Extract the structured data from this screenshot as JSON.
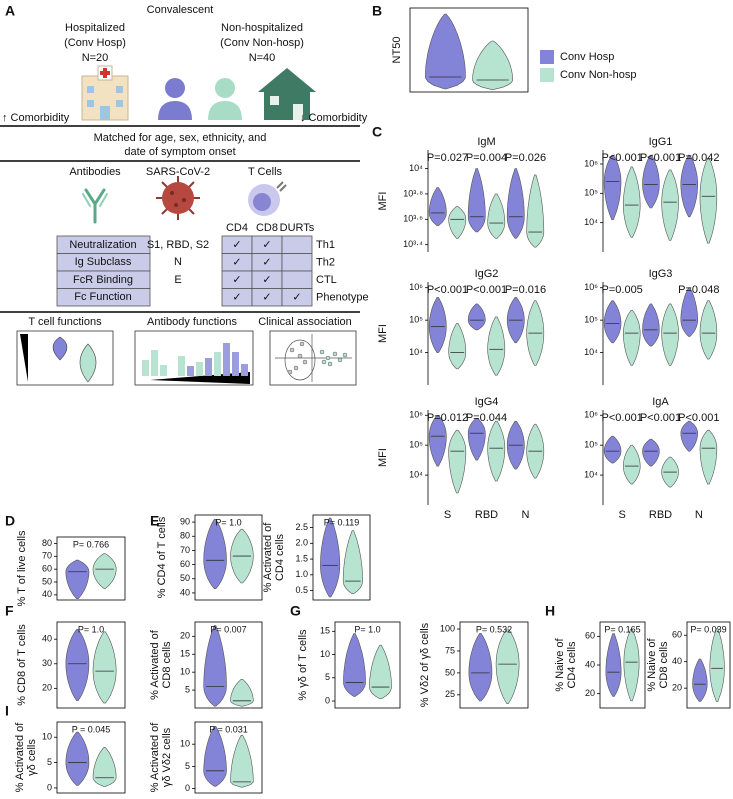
{
  "panel_a": {
    "letter": "A",
    "heading": "Convalescent",
    "groups": [
      {
        "lines": [
          "Hospitalized",
          "(Conv Hosp)",
          "N=20"
        ]
      },
      {
        "lines": [
          "Non-hospitalized",
          "(Conv Non-hosp)",
          "N=40"
        ]
      }
    ],
    "comorbidity": [
      "↑ Comorbidity",
      "↓ Comorbidity"
    ],
    "matched": [
      "Matched for age, sex, ethnicity, and",
      "date of symptom onset"
    ],
    "columns": [
      "Antibodies",
      "SARS-CoV-2",
      "T Cells"
    ],
    "assays": [
      [
        "Neutralization",
        "S1, RBD, S2"
      ],
      [
        "Ig Subclass",
        "N"
      ],
      [
        "FcR Binding",
        "E"
      ],
      [
        "Fc Function"
      ]
    ],
    "t_cells": {
      "headers": [
        "CD4",
        "CD8",
        "DURTs"
      ],
      "rows": [
        {
          "checks": [
            "✓",
            "✓",
            null
          ],
          "label": "Th1"
        },
        {
          "checks": [
            "✓",
            "✓",
            null
          ],
          "label": "Th2"
        },
        {
          "checks": [
            "✓",
            "✓",
            null
          ],
          "label": "CTL"
        },
        {
          "checks": [
            "✓",
            "✓",
            "✓"
          ],
          "label": "Phenotype"
        }
      ]
    },
    "functions": [
      "T cell functions",
      "Antibody functions",
      "Clinical association"
    ]
  },
  "legend": [
    {
      "name": "Conv Hosp",
      "color": "#8383d8"
    },
    {
      "name": "Conv Non-hosp",
      "color": "#b7e3d1"
    }
  ],
  "chart_data": [
    {
      "type": "violin",
      "panel": "B",
      "ylabel": [
        "NT50"
      ],
      "ylim": [
        0,
        2800
      ],
      "series": [
        {
          "color": "#8383d8",
          "min": [
            100
          ],
          "median": [
            500
          ],
          "max": [
            2600
          ]
        },
        {
          "color": "#b7e3d1",
          "min": [
            80
          ],
          "median": [
            400
          ],
          "max": [
            1700
          ]
        }
      ]
    },
    {
      "type": "violin",
      "panel": "C",
      "title": "IgM",
      "ylabel": [
        "MFI"
      ],
      "log": true,
      "ylim": [
        2200,
        14000
      ],
      "yticks": [
        {
          "value": 2511.886,
          "label": "10³·⁴"
        },
        {
          "value": 3981.072,
          "label": "10³·⁶"
        },
        {
          "value": 6309.573,
          "label": "10³·⁸"
        },
        {
          "value": 10000,
          "label": "10⁴"
        }
      ],
      "categories": [
        null,
        null,
        null
      ],
      "annotations": [
        "P=0.027",
        "P=0.004",
        "P=0.026"
      ],
      "series": [
        {
          "color": "#8383d8",
          "min": [
            3550,
            3160,
            2820
          ],
          "median": [
            4470,
            4170,
            4170
          ],
          "max": [
            7080,
            10000,
            10000
          ]
        },
        {
          "color": "#b7e3d1",
          "min": [
            2820,
            2820,
            2400
          ],
          "median": [
            3980,
            3720,
            3160
          ],
          "max": [
            5010,
            6310,
            8910
          ]
        }
      ]
    },
    {
      "type": "violin",
      "title": "IgG1",
      "log": true,
      "ylim": [
        1000,
        3000000
      ],
      "yticks": [
        {
          "value": 10000,
          "label": "10⁴"
        },
        {
          "value": 100000,
          "label": "10⁵"
        },
        {
          "value": 1000000,
          "label": "10⁶"
        }
      ],
      "categories": [
        null,
        null,
        null
      ],
      "annotations": [
        "P<0.001",
        "P<0.001",
        "P=0.042"
      ],
      "series": [
        {
          "color": "#8383d8",
          "min": [
            12600,
            31600,
            15800
          ],
          "median": [
            251000,
            200000,
            200000
          ],
          "max": [
            2000000,
            2000000,
            2000000
          ]
        },
        {
          "color": "#b7e3d1",
          "min": [
            3160,
            2510,
            2000
          ],
          "median": [
            39800,
            50100,
            79400
          ],
          "max": [
            794000,
            631000,
            1580000
          ]
        }
      ]
    },
    {
      "type": "violin",
      "title": "IgG2",
      "ylabel": [
        "MFI"
      ],
      "log": true,
      "ylim": [
        1000,
        1500000
      ],
      "yticks": [
        {
          "value": 10000,
          "label": "10⁴"
        },
        {
          "value": 100000,
          "label": "10⁵"
        },
        {
          "value": 1000000,
          "label": "10⁶"
        }
      ],
      "categories": [
        null,
        null,
        null
      ],
      "annotations": [
        "P<0.001",
        "P<0.001",
        "P=0.016"
      ],
      "series": [
        {
          "color": "#8383d8",
          "min": [
            10000,
            50100,
            20000
          ],
          "median": [
            63100,
            100000,
            100000
          ],
          "max": [
            501000,
            316000,
            501000
          ]
        },
        {
          "color": "#b7e3d1",
          "min": [
            3160,
            2000,
            3980
          ],
          "median": [
            10000,
            12600,
            39800
          ],
          "max": [
            79400,
            126000,
            398000
          ]
        }
      ]
    },
    {
      "type": "violin",
      "title": "IgG3",
      "log": true,
      "ylim": [
        1000,
        1500000
      ],
      "yticks": [
        {
          "value": 10000,
          "label": "10⁴"
        },
        {
          "value": 100000,
          "label": "10⁵"
        },
        {
          "value": 1000000,
          "label": "10⁶"
        }
      ],
      "categories": [
        null,
        null,
        null
      ],
      "annotations": [
        "P=0.005",
        null,
        "P=0.048"
      ],
      "series": [
        {
          "color": "#8383d8",
          "min": [
            20000,
            15800,
            31600
          ],
          "median": [
            79400,
            50100,
            100000
          ],
          "max": [
            398000,
            316000,
            1000000
          ]
        },
        {
          "color": "#b7e3d1",
          "min": [
            3980,
            3980,
            6310
          ],
          "median": [
            39800,
            39800,
            39800
          ],
          "max": [
            200000,
            316000,
            398000
          ]
        }
      ]
    },
    {
      "type": "violin",
      "title": "IgG4",
      "ylabel": [
        "MFI"
      ],
      "log": true,
      "ylim": [
        1000,
        1500000
      ],
      "yticks": [
        {
          "value": 10000,
          "label": "10⁴"
        },
        {
          "value": 100000,
          "label": "10⁵"
        },
        {
          "value": 1000000,
          "label": "10⁶"
        }
      ],
      "categories": [
        "S",
        "RBD",
        "N"
      ],
      "annotations": [
        "P=0.012",
        "P=0.044",
        null
      ],
      "series": [
        {
          "color": "#8383d8",
          "min": [
            20000,
            31600,
            15800
          ],
          "median": [
            200000,
            251000,
            100000
          ],
          "max": [
            1000000,
            794000,
            631000
          ]
        },
        {
          "color": "#b7e3d1",
          "min": [
            2510,
            6310,
            7940
          ],
          "median": [
            63100,
            79400,
            63100
          ],
          "max": [
            316000,
            631000,
            501000
          ]
        }
      ]
    },
    {
      "type": "violin",
      "title": "IgA",
      "log": true,
      "ylim": [
        1000,
        1500000
      ],
      "yticks": [
        {
          "value": 10000,
          "label": "10⁴"
        },
        {
          "value": 100000,
          "label": "10⁵"
        },
        {
          "value": 1000000,
          "label": "10⁶"
        }
      ],
      "categories": [
        "S",
        "RBD",
        "N"
      ],
      "annotations": [
        "P<0.001",
        "P<0.001",
        "P<0.001"
      ],
      "series": [
        {
          "color": "#8383d8",
          "min": [
            25100,
            20000,
            63100
          ],
          "median": [
            63100,
            63100,
            251000
          ],
          "max": [
            200000,
            158000,
            631000
          ]
        },
        {
          "color": "#b7e3d1",
          "min": [
            5010,
            3980,
            5010
          ],
          "median": [
            20000,
            12600,
            79400
          ],
          "max": [
            100000,
            39800,
            316000
          ]
        }
      ]
    },
    {
      "type": "violin",
      "panel": "D",
      "ylabel": [
        "% T of live cells"
      ],
      "ylim": [
        36,
        85
      ],
      "yticks": [
        40,
        50,
        60,
        70,
        80
      ],
      "annotations": [
        "P= 0.766"
      ],
      "series": [
        {
          "color": "#8383d8",
          "min": [
            37
          ],
          "median": [
            58
          ],
          "max": [
            67
          ]
        },
        {
          "color": "#b7e3d1",
          "min": [
            45
          ],
          "median": [
            60
          ],
          "max": [
            72
          ]
        }
      ]
    },
    {
      "type": "violin",
      "panel": "E",
      "ylabel": [
        "% CD4 of T cells"
      ],
      "ylim": [
        35,
        95
      ],
      "yticks": [
        40,
        50,
        60,
        70,
        80,
        90
      ],
      "annotations": [
        "P= 1.0"
      ],
      "series": [
        {
          "color": "#8383d8",
          "min": [
            43
          ],
          "median": [
            63
          ],
          "max": [
            92
          ]
        },
        {
          "color": "#b7e3d1",
          "min": [
            47
          ],
          "median": [
            66
          ],
          "max": [
            85
          ]
        }
      ]
    },
    {
      "type": "violin",
      "ylabel": [
        "% Activated of",
        "CD4 cells"
      ],
      "ylim": [
        0.2,
        2.9
      ],
      "yticks": [
        0.5,
        {
          "value": 1,
          "label": "1.0"
        },
        1.5,
        {
          "value": 2,
          "label": "2.0"
        },
        2.5
      ],
      "annotations": [
        "P= 0.119"
      ],
      "series": [
        {
          "color": "#8383d8",
          "min": [
            0.3
          ],
          "median": [
            1.3
          ],
          "max": [
            2.8
          ]
        },
        {
          "color": "#b7e3d1",
          "min": [
            0.4
          ],
          "median": [
            0.8
          ],
          "max": [
            2.4
          ]
        }
      ]
    },
    {
      "type": "violin",
      "panel": "F",
      "ylabel": [
        "% CD8 of T cells"
      ],
      "ylim": [
        12,
        47
      ],
      "yticks": [
        20,
        30,
        40
      ],
      "annotations": [
        "P= 1.0"
      ],
      "series": [
        {
          "color": "#8383d8",
          "min": [
            15
          ],
          "median": [
            30
          ],
          "max": [
            44
          ]
        },
        {
          "color": "#b7e3d1",
          "min": [
            14
          ],
          "median": [
            27
          ],
          "max": [
            43
          ]
        }
      ]
    },
    {
      "type": "violin",
      "ylabel": [
        "% Activated of",
        "CD8 cells"
      ],
      "ylim": [
        0,
        24
      ],
      "yticks": [
        5,
        10,
        15,
        20
      ],
      "annotations": [
        "P= 0.007"
      ],
      "series": [
        {
          "color": "#8383d8",
          "min": [
            0.5
          ],
          "median": [
            6
          ],
          "max": [
            23
          ]
        },
        {
          "color": "#b7e3d1",
          "min": [
            0.5
          ],
          "median": [
            2
          ],
          "max": [
            8
          ]
        }
      ]
    },
    {
      "type": "violin",
      "panel": "G",
      "ylabel": [
        "% γδ of T cells"
      ],
      "ylim": [
        -1.5,
        17
      ],
      "yticks": [
        0,
        5,
        10,
        15
      ],
      "annotations": [
        "P= 1.0"
      ],
      "series": [
        {
          "color": "#8383d8",
          "min": [
            1
          ],
          "median": [
            4
          ],
          "max": [
            14.5
          ]
        },
        {
          "color": "#b7e3d1",
          "min": [
            0.5
          ],
          "median": [
            3
          ],
          "max": [
            12
          ]
        }
      ]
    },
    {
      "type": "violin",
      "ylabel": [
        "% Vδ2 of γδ cells"
      ],
      "ylim": [
        10,
        108
      ],
      "yticks": [
        25,
        50,
        75,
        100
      ],
      "annotations": [
        "P= 0.532"
      ],
      "series": [
        {
          "color": "#8383d8",
          "min": [
            18
          ],
          "median": [
            50
          ],
          "max": [
            95
          ]
        },
        {
          "color": "#b7e3d1",
          "min": [
            15
          ],
          "median": [
            60
          ],
          "max": [
            100
          ]
        }
      ]
    },
    {
      "type": "violin",
      "panel": "H",
      "ylabel": [
        "% Naive of",
        "CD4 cells"
      ],
      "ylim": [
        10,
        70
      ],
      "yticks": [
        20,
        40,
        60
      ],
      "annotations": [
        "P= 0.165"
      ],
      "series": [
        {
          "color": "#8383d8",
          "min": [
            18
          ],
          "median": [
            35
          ],
          "max": [
            62
          ]
        },
        {
          "color": "#b7e3d1",
          "min": [
            15
          ],
          "median": [
            42
          ],
          "max": [
            65
          ]
        }
      ]
    },
    {
      "type": "violin",
      "ylabel": [
        "% Naive of",
        "CD8 cells"
      ],
      "ylim": [
        5,
        70
      ],
      "yticks": [
        20,
        40,
        60
      ],
      "annotations": [
        "P= 0.039"
      ],
      "series": [
        {
          "color": "#8383d8",
          "min": [
            10
          ],
          "median": [
            23
          ],
          "max": [
            42
          ]
        },
        {
          "color": "#b7e3d1",
          "min": [
            10
          ],
          "median": [
            35
          ],
          "max": [
            65
          ]
        }
      ]
    },
    {
      "type": "violin",
      "panel": "I",
      "ylabel": [
        "% Activated of",
        "γδ cells"
      ],
      "ylim": [
        -1,
        13
      ],
      "yticks": [
        0,
        5,
        10
      ],
      "annotations": [
        "P = 0.045"
      ],
      "series": [
        {
          "color": "#8383d8",
          "min": [
            0.5
          ],
          "median": [
            5
          ],
          "max": [
            11
          ]
        },
        {
          "color": "#b7e3d1",
          "min": [
            0.3
          ],
          "median": [
            2
          ],
          "max": [
            8
          ]
        }
      ]
    },
    {
      "type": "violin",
      "ylabel": [
        "% Activated of",
        "γδ Vδ2 cells"
      ],
      "ylim": [
        -1,
        15
      ],
      "yticks": [
        0,
        5,
        10
      ],
      "annotations": [
        "P = 0.031"
      ],
      "series": [
        {
          "color": "#8383d8",
          "min": [
            0.5
          ],
          "median": [
            4
          ],
          "max": [
            14
          ]
        },
        {
          "color": "#b7e3d1",
          "min": [
            0.3
          ],
          "median": [
            1.5
          ],
          "max": [
            12
          ]
        }
      ]
    }
  ]
}
